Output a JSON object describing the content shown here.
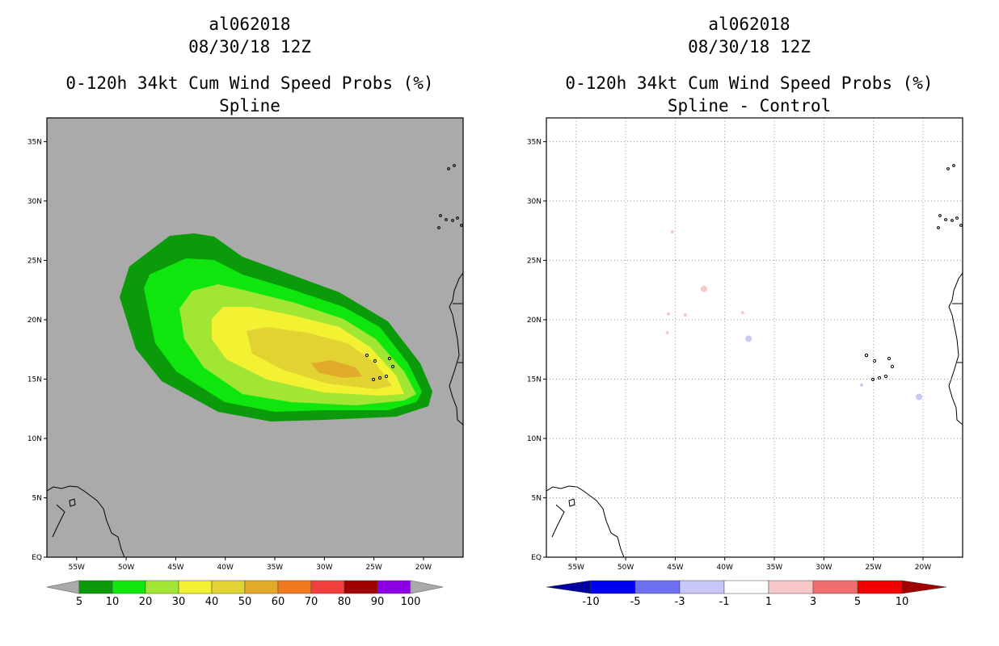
{
  "chart_data": [
    {
      "type": "heatmap",
      "storm_id": "al062018",
      "datetime": "08/30/18 12Z",
      "title": "0-120h 34kt Cum Wind Speed Probs (%)",
      "subtitle": "Spline",
      "lon_range": [
        -58,
        -16
      ],
      "lat_range": [
        0,
        37
      ],
      "x_ticks": [
        "55W",
        "50W",
        "45W",
        "40W",
        "35W",
        "30W",
        "25W",
        "20W"
      ],
      "y_ticks": [
        "EQ",
        "5N",
        "10N",
        "15N",
        "20N",
        "25N",
        "30N",
        "35N"
      ],
      "colorbar": {
        "labels": [
          "5",
          "10",
          "20",
          "30",
          "40",
          "50",
          "60",
          "70",
          "80",
          "90",
          "100"
        ],
        "colors": [
          "#0a9a0a",
          "#0ee60e",
          "#a0e632",
          "#f2f232",
          "#e2d232",
          "#e2aa2a",
          "#f27a1e",
          "#f24040",
          "#a00000",
          "#8c00e6"
        ]
      },
      "probability_levels": [
        {
          "min": 5,
          "max": 10,
          "color": "#0a9a0a"
        },
        {
          "min": 10,
          "max": 20,
          "color": "#0ee60e"
        },
        {
          "min": 20,
          "max": 30,
          "color": "#a0e632"
        },
        {
          "min": 30,
          "max": 40,
          "color": "#f2f232"
        },
        {
          "min": 40,
          "max": 50,
          "color": "#e2d232"
        },
        {
          "min": 50,
          "max": 60,
          "color": "#e2aa2a"
        }
      ],
      "background_color": "#aaaaaa"
    },
    {
      "type": "heatmap",
      "storm_id": "al062018",
      "datetime": "08/30/18 12Z",
      "title": "0-120h 34kt Cum Wind Speed Probs (%)",
      "subtitle": "Spline - Control",
      "lon_range": [
        -58,
        -16
      ],
      "lat_range": [
        0,
        37
      ],
      "x_ticks": [
        "55W",
        "50W",
        "45W",
        "40W",
        "35W",
        "30W",
        "25W",
        "20W"
      ],
      "y_ticks": [
        "EQ",
        "5N",
        "10N",
        "15N",
        "20N",
        "25N",
        "30N",
        "35N"
      ],
      "colorbar": {
        "labels": [
          "-10",
          "-5",
          "-3",
          "-1",
          "1",
          "3",
          "5",
          "10"
        ],
        "colors": [
          "#0000a0",
          "#0000f0",
          "#6e6ef0",
          "#c8c8f8",
          "#ffffff",
          "#f8c8c8",
          "#f06e6e",
          "#f00000",
          "#a00000"
        ]
      },
      "difference_spots": [
        {
          "lon": -45.7,
          "lat": 20.5,
          "value": 1.5
        },
        {
          "lon": -44.0,
          "lat": 20.4,
          "value": 1.5
        },
        {
          "lon": -45.8,
          "lat": 18.9,
          "value": 1.5
        },
        {
          "lon": -42.1,
          "lat": 22.6,
          "value": 2
        },
        {
          "lon": -45.3,
          "lat": 27.4,
          "value": 1.5
        },
        {
          "lon": -38.2,
          "lat": 20.6,
          "value": 1.5
        },
        {
          "lon": -37.6,
          "lat": 18.4,
          "value": -2
        },
        {
          "lon": -20.4,
          "lat": 13.5,
          "value": -2
        },
        {
          "lon": -26.2,
          "lat": 14.5,
          "value": -1.5
        }
      ]
    }
  ]
}
